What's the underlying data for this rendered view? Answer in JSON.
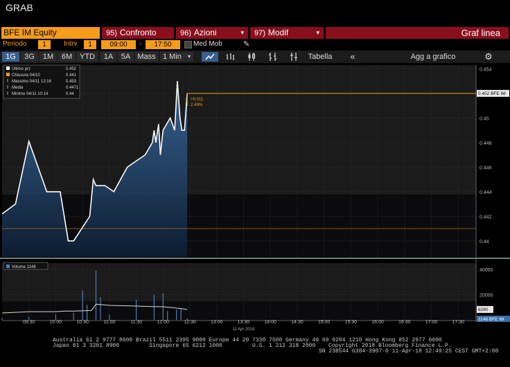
{
  "window_title": "GRAB",
  "toolbar": {
    "ticker": "BFE IM Equity",
    "buttons": [
      {
        "num": "95)",
        "label": "Confronto",
        "caret": ""
      },
      {
        "num": "96)",
        "label": "Azioni",
        "caret": "▾"
      },
      {
        "num": "97)",
        "label": "Modif",
        "caret": "▾"
      }
    ],
    "view_label": "Graf linea"
  },
  "period_bar": {
    "periodo_label": "Periodo",
    "periodo_value": "1",
    "intrv_label": "Intrv",
    "intrv_value": "1",
    "start_time": "09:00",
    "dash": "-",
    "end_time": "17:50",
    "med_mob_label": "Med Mob"
  },
  "range_buttons": [
    "1G",
    "3G",
    "1M",
    "6M",
    "YTD",
    "1A",
    "5A",
    "Mass"
  ],
  "interval_select": "1 Min",
  "tools": {
    "tabella": "Tabella",
    "add_to_chart": "Agg a grafico"
  },
  "legend": {
    "items": [
      {
        "label": "Ultimo prz",
        "value": "0.452",
        "color": "#ffffff"
      },
      {
        "label": "Chiusura 04/10",
        "value": "0.441",
        "color": "#f59c1a"
      },
      {
        "label": "Massimo 04/11 12:16",
        "value": "0.453",
        "color": "#cccccc"
      },
      {
        "label": "Media",
        "value": "0.4471",
        "color": "#cccccc"
      },
      {
        "label": "Minimo 04/11 10:14",
        "value": "0.44",
        "color": "#cccccc"
      }
    ]
  },
  "volume_legend": {
    "label": "Volume",
    "value": "1148"
  },
  "annotations": {
    "change_abs": "+0.011",
    "change_pct": "2.49%",
    "last_price_tag": "0.452 BFE IM",
    "vol_tag_1": "8280",
    "vol_tag_2": "1148 BFE IM",
    "date_label": "11 Apr 2018"
  },
  "chart_data": {
    "type": "line",
    "y_ticks": [
      "0.454",
      "0.452",
      "0.45",
      "0.448",
      "0.446",
      "0.444",
      "0.442",
      "0.44"
    ],
    "ylim": [
      0.4387,
      0.4543
    ],
    "volume_ticks": [
      "40000",
      "20000"
    ],
    "x_ticks": [
      "09:30",
      "10:00",
      "10:30",
      "11:00",
      "11:30",
      "12:00",
      "12:30",
      "13:00",
      "13:30",
      "14:00",
      "14:30",
      "15:00",
      "15:30",
      "16:00",
      "16:30",
      "17:00",
      "17:30"
    ],
    "last_price": 0.452,
    "prev_close": 0.441,
    "series": [
      {
        "name": "Ultimo prz",
        "points": [
          [
            "09:00",
            0.4422
          ],
          [
            "09:15",
            0.443
          ],
          [
            "09:30",
            0.4481
          ],
          [
            "09:50",
            0.444
          ],
          [
            "10:05",
            0.444
          ],
          [
            "10:14",
            0.44
          ],
          [
            "10:20",
            0.44
          ],
          [
            "10:38",
            0.442
          ],
          [
            "10:42",
            0.445
          ],
          [
            "10:45",
            0.4445
          ],
          [
            "10:55",
            0.4445
          ],
          [
            "11:05",
            0.444
          ],
          [
            "11:20",
            0.446
          ],
          [
            "11:40",
            0.447
          ],
          [
            "11:48",
            0.448
          ],
          [
            "11:50",
            0.449
          ],
          [
            "11:52",
            0.448
          ],
          [
            "11:55",
            0.4495
          ],
          [
            "11:57",
            0.447
          ],
          [
            "12:00",
            0.449
          ],
          [
            "12:08",
            0.45
          ],
          [
            "12:13",
            0.449
          ],
          [
            "12:16",
            0.453
          ],
          [
            "12:19",
            0.45
          ],
          [
            "12:21",
            0.449
          ],
          [
            "12:24",
            0.449
          ],
          [
            "12:27",
            0.452
          ]
        ]
      }
    ],
    "volume": [
      [
        "09:00",
        1500
      ],
      [
        "09:30",
        2500
      ],
      [
        "10:00",
        4500
      ],
      [
        "10:20",
        5500
      ],
      [
        "10:30",
        23000
      ],
      [
        "10:35",
        12000
      ],
      [
        "10:45",
        39000
      ],
      [
        "10:50",
        18000
      ],
      [
        "11:00",
        4000
      ],
      [
        "11:30",
        16000
      ],
      [
        "11:50",
        20000
      ],
      [
        "12:00",
        21000
      ],
      [
        "12:05",
        7000
      ],
      [
        "12:15",
        8000
      ],
      [
        "12:20",
        9000
      ],
      [
        "12:27",
        1148
      ]
    ],
    "volume_avg_points": [
      [
        "09:00",
        5500
      ],
      [
        "09:30",
        6500
      ],
      [
        "10:00",
        6500
      ],
      [
        "10:10",
        7000
      ],
      [
        "10:20",
        7000
      ],
      [
        "10:40",
        7500
      ],
      [
        "10:45",
        12500
      ],
      [
        "11:00",
        11500
      ],
      [
        "11:30",
        11000
      ],
      [
        "11:50",
        10500
      ],
      [
        "12:00",
        10500
      ],
      [
        "12:20",
        9000
      ],
      [
        "12:27",
        8280
      ]
    ]
  },
  "footer": {
    "line1": "Australia 61 2 9777 8600 Brazil 5511 2395 9000 Europe 44 20 7330 7500 Germany 49 69 9204 1210 Hong Kong 852 2977 6000",
    "line2": "Japan 81 3 3201 8900         Singapore 65 6212 1000         U.S. 1 212 318 2000",
    "line2b": "Copyright 2018 Bloomberg Finance L.P.",
    "line3": "SN 238544 G384-3907-0 11-Apr-18 12:49:25 CEST GMT+2:00"
  }
}
